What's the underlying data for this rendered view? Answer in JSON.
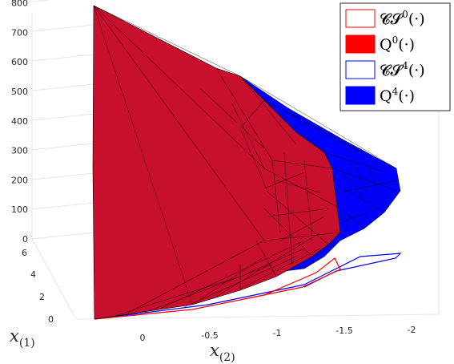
{
  "chart_data": {
    "type": "3d-surface",
    "title": "",
    "axes": {
      "z": {
        "ticks": [
          "0",
          "100",
          "200",
          "300",
          "400",
          "500",
          "600",
          "700",
          "800"
        ],
        "range": [
          0,
          800
        ]
      },
      "y": {
        "label": "x",
        "label_sub": "(1)",
        "ticks": [
          "0",
          "2",
          "4",
          "6"
        ],
        "range": [
          0,
          6
        ]
      },
      "x": {
        "label": "x",
        "label_sub": "(2)",
        "ticks": [
          "0",
          "-0.5",
          "-1",
          "-1.5",
          "-2"
        ],
        "range": [
          0,
          -2
        ]
      }
    },
    "grid": true,
    "legend": {
      "placement": "top-right",
      "entries": [
        {
          "sym": "𝓒𝓢",
          "sup": "0",
          "args": "(·)",
          "style": "outline",
          "color": "#ff0000"
        },
        {
          "sym": "Q",
          "sup": "0",
          "args": "(·)",
          "style": "filled",
          "color": "#ff0000"
        },
        {
          "sym": "𝓒𝓢",
          "sup": "4",
          "args": "(·)",
          "style": "outline",
          "color": "#0000ff"
        },
        {
          "sym": "Q",
          "sup": "4",
          "args": "(·)",
          "style": "filled",
          "color": "#0000ff"
        }
      ]
    },
    "series": [
      {
        "name": "𝓒𝓢⁰(·)",
        "kind": "projection-outline",
        "color": "#ff0000"
      },
      {
        "name": "Q⁰(·)",
        "kind": "surface",
        "color": "#c8102e"
      },
      {
        "name": "𝓒𝓢⁴(·)",
        "kind": "projection-outline",
        "color": "#0000ff"
      },
      {
        "name": "Q⁴(·)",
        "kind": "surface",
        "color": "#0000ff"
      }
    ]
  }
}
